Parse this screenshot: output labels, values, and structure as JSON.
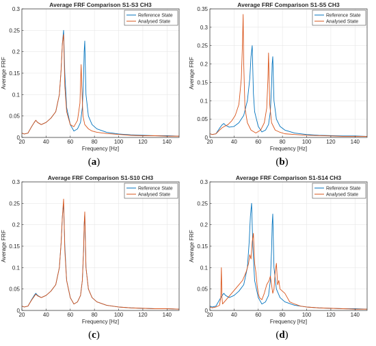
{
  "figure": {
    "panels": [
      {
        "caption_letter": "a",
        "title": "Average FRF Comparison S1-S3 CH3",
        "xlabel": "Frequency [Hz]",
        "ylabel": "Average FRF",
        "legend": [
          "Reference State",
          "Analysed State"
        ]
      },
      {
        "caption_letter": "b",
        "title": "Average FRF Comparison S1-S5 CH3",
        "xlabel": "Frequency [Hz]",
        "ylabel": "Average FRF",
        "legend": [
          "Reference State",
          "Analysed State"
        ]
      },
      {
        "caption_letter": "c",
        "title": "Average FRF Comparison S1-S10 CH3",
        "xlabel": "Frequency [Hz]",
        "ylabel": "Average FRF",
        "legend": [
          "Reference State",
          "Analysed State"
        ]
      },
      {
        "caption_letter": "d",
        "title": "Average FRF Comparison S1-S14 CH3",
        "xlabel": "Frequency [Hz]",
        "ylabel": "Average FRF",
        "legend": [
          "Reference State",
          "Analysed State"
        ]
      }
    ]
  },
  "colors": {
    "reference": "#0072BD",
    "analysed": "#D95319",
    "grid": "#e6e6e6",
    "axis": "#262626"
  },
  "chart_data": [
    {
      "type": "line",
      "title": "Average FRF Comparison S1-S3 CH3",
      "xlabel": "Frequency [Hz]",
      "ylabel": "Average FRF",
      "xlim": [
        20,
        150
      ],
      "ylim": [
        0,
        0.3
      ],
      "xticks": [
        20,
        40,
        60,
        80,
        100,
        120,
        140
      ],
      "yticks": [
        0,
        0.05,
        0.1,
        0.15,
        0.2,
        0.25,
        0.3
      ],
      "grid": true,
      "legend_position": "top-right",
      "series": [
        {
          "name": "Reference State",
          "x": [
            20,
            22,
            25,
            28,
            30,
            31.5,
            33,
            36,
            40,
            44,
            48,
            51,
            52.5,
            53.5,
            54.5,
            55.5,
            57,
            60,
            63,
            66,
            68.5,
            70,
            71,
            71.5,
            72,
            73,
            75,
            78,
            82,
            90,
            100,
            110,
            120,
            130,
            140,
            150
          ],
          "y": [
            0.01,
            0.008,
            0.01,
            0.025,
            0.034,
            0.04,
            0.035,
            0.03,
            0.035,
            0.045,
            0.06,
            0.1,
            0.16,
            0.22,
            0.25,
            0.15,
            0.07,
            0.03,
            0.015,
            0.02,
            0.035,
            0.07,
            0.14,
            0.2,
            0.225,
            0.1,
            0.05,
            0.03,
            0.02,
            0.012,
            0.008,
            0.006,
            0.005,
            0.004,
            0.004,
            0.003
          ]
        },
        {
          "name": "Analysed State",
          "x": [
            20,
            22,
            25,
            28,
            30,
            31.5,
            33,
            36,
            40,
            44,
            48,
            51,
            52.5,
            53.5,
            54.5,
            55.5,
            57,
            60,
            63,
            66,
            68,
            69,
            69.5,
            70.5,
            72,
            75,
            78,
            82,
            90,
            100,
            110,
            120,
            130,
            140,
            150
          ],
          "y": [
            0.01,
            0.008,
            0.01,
            0.025,
            0.034,
            0.04,
            0.035,
            0.03,
            0.035,
            0.045,
            0.06,
            0.1,
            0.16,
            0.22,
            0.24,
            0.12,
            0.06,
            0.03,
            0.025,
            0.04,
            0.08,
            0.17,
            0.12,
            0.05,
            0.03,
            0.02,
            0.015,
            0.012,
            0.009,
            0.007,
            0.005,
            0.004,
            0.004,
            0.003,
            0.003
          ]
        }
      ]
    },
    {
      "type": "line",
      "title": "Average FRF Comparison S1-S5 CH3",
      "xlabel": "Frequency [Hz]",
      "ylabel": "Average FRF",
      "xlim": [
        20,
        150
      ],
      "ylim": [
        0,
        0.35
      ],
      "xticks": [
        20,
        40,
        60,
        80,
        100,
        120,
        140
      ],
      "yticks": [
        0,
        0.05,
        0.1,
        0.15,
        0.2,
        0.25,
        0.3,
        0.35
      ],
      "grid": true,
      "legend_position": "top-right",
      "series": [
        {
          "name": "Reference State",
          "x": [
            20,
            22,
            25,
            28,
            30,
            31.5,
            33,
            36,
            40,
            44,
            48,
            51,
            53,
            54,
            55,
            56,
            57,
            60,
            63,
            66,
            68.5,
            70,
            71,
            71.5,
            72,
            73,
            75,
            78,
            82,
            90,
            100,
            110,
            120,
            130,
            140,
            150
          ],
          "y": [
            0.01,
            0.008,
            0.01,
            0.025,
            0.034,
            0.038,
            0.033,
            0.028,
            0.03,
            0.04,
            0.06,
            0.1,
            0.16,
            0.22,
            0.25,
            0.12,
            0.07,
            0.03,
            0.015,
            0.02,
            0.035,
            0.07,
            0.14,
            0.2,
            0.22,
            0.1,
            0.05,
            0.03,
            0.02,
            0.012,
            0.008,
            0.006,
            0.005,
            0.004,
            0.004,
            0.003
          ]
        },
        {
          "name": "Analysed State",
          "x": [
            20,
            22,
            25,
            28,
            30,
            32,
            35,
            38,
            41,
            44,
            46,
            47,
            47.5,
            48,
            49,
            51,
            54,
            58,
            62,
            65,
            67,
            68,
            68.5,
            69.5,
            71,
            74,
            78,
            82,
            90,
            100,
            110,
            120,
            130,
            140,
            150
          ],
          "y": [
            0.01,
            0.008,
            0.01,
            0.02,
            0.026,
            0.03,
            0.035,
            0.045,
            0.06,
            0.09,
            0.16,
            0.26,
            0.335,
            0.2,
            0.08,
            0.04,
            0.02,
            0.012,
            0.02,
            0.04,
            0.08,
            0.16,
            0.23,
            0.09,
            0.04,
            0.02,
            0.014,
            0.01,
            0.008,
            0.006,
            0.005,
            0.004,
            0.003,
            0.003,
            0.003
          ]
        }
      ]
    },
    {
      "type": "line",
      "title": "Average FRF Comparison S1-S10 CH3",
      "xlabel": "Frequency [Hz]",
      "ylabel": "Average FRF",
      "xlim": [
        20,
        150
      ],
      "ylim": [
        0,
        0.3
      ],
      "xticks": [
        20,
        40,
        60,
        80,
        100,
        120,
        140
      ],
      "yticks": [
        0,
        0.05,
        0.1,
        0.15,
        0.2,
        0.25,
        0.3
      ],
      "grid": true,
      "legend_position": "top-right",
      "series": [
        {
          "name": "Reference State",
          "x": [
            20,
            22,
            25,
            28,
            30,
            31.5,
            33,
            36,
            40,
            44,
            48,
            51,
            52.5,
            53.5,
            54.5,
            55.5,
            57,
            60,
            63,
            66,
            68.5,
            70,
            71,
            71.5,
            72,
            73,
            75,
            78,
            82,
            90,
            100,
            110,
            120,
            130,
            140,
            150
          ],
          "y": [
            0.01,
            0.008,
            0.01,
            0.025,
            0.034,
            0.04,
            0.035,
            0.03,
            0.035,
            0.045,
            0.06,
            0.1,
            0.16,
            0.22,
            0.25,
            0.15,
            0.07,
            0.03,
            0.015,
            0.02,
            0.035,
            0.07,
            0.14,
            0.2,
            0.225,
            0.1,
            0.05,
            0.03,
            0.02,
            0.012,
            0.008,
            0.006,
            0.005,
            0.004,
            0.004,
            0.003
          ]
        },
        {
          "name": "Analysed State",
          "x": [
            20,
            22,
            25,
            28,
            30,
            31.5,
            33,
            36,
            40,
            44,
            48,
            51,
            52.5,
            53.5,
            54.5,
            55.5,
            57,
            60,
            63,
            66,
            68.5,
            70,
            71,
            71.5,
            72,
            73,
            75,
            78,
            82,
            90,
            100,
            110,
            120,
            130,
            140,
            150
          ],
          "y": [
            0.01,
            0.008,
            0.01,
            0.024,
            0.032,
            0.038,
            0.034,
            0.03,
            0.035,
            0.045,
            0.06,
            0.1,
            0.16,
            0.22,
            0.26,
            0.14,
            0.07,
            0.03,
            0.015,
            0.02,
            0.035,
            0.07,
            0.14,
            0.2,
            0.23,
            0.1,
            0.05,
            0.03,
            0.02,
            0.012,
            0.008,
            0.006,
            0.005,
            0.004,
            0.004,
            0.003
          ]
        }
      ]
    },
    {
      "type": "line",
      "title": "Average FRF Comparison S1-S14 CH3",
      "xlabel": "Frequency [Hz]",
      "ylabel": "Average FRF",
      "xlim": [
        20,
        150
      ],
      "ylim": [
        0,
        0.3
      ],
      "xticks": [
        20,
        40,
        60,
        80,
        100,
        120,
        140
      ],
      "yticks": [
        0,
        0.05,
        0.1,
        0.15,
        0.2,
        0.25,
        0.3
      ],
      "grid": true,
      "legend_position": "top-right",
      "series": [
        {
          "name": "Reference State",
          "x": [
            20,
            22,
            25,
            28,
            30,
            31.5,
            33,
            36,
            40,
            44,
            48,
            51,
            52.5,
            53.5,
            54.5,
            55.5,
            57,
            60,
            63,
            66,
            68.5,
            70,
            71,
            71.5,
            72,
            73,
            75,
            78,
            82,
            90,
            100,
            110,
            120,
            130,
            140,
            150
          ],
          "y": [
            0.01,
            0.008,
            0.01,
            0.025,
            0.034,
            0.04,
            0.035,
            0.03,
            0.035,
            0.045,
            0.06,
            0.1,
            0.16,
            0.22,
            0.25,
            0.15,
            0.07,
            0.03,
            0.015,
            0.02,
            0.035,
            0.07,
            0.14,
            0.2,
            0.225,
            0.1,
            0.05,
            0.03,
            0.02,
            0.012,
            0.008,
            0.006,
            0.005,
            0.004,
            0.004,
            0.003
          ]
        },
        {
          "name": "Analysed State",
          "x": [
            20,
            22,
            25,
            28,
            29,
            29.5,
            30,
            30.5,
            32,
            35,
            38,
            41,
            44,
            47,
            50,
            52,
            53,
            54,
            55,
            56,
            57,
            58,
            59,
            60,
            61,
            63,
            65,
            67,
            69,
            70,
            71,
            72,
            73,
            74,
            75,
            76,
            77,
            78,
            80,
            82,
            84,
            86,
            90,
            95,
            100,
            110,
            120,
            130,
            140,
            150
          ],
          "y": [
            0.008,
            0.006,
            0.008,
            0.012,
            0.03,
            0.1,
            0.03,
            0.015,
            0.02,
            0.03,
            0.04,
            0.05,
            0.06,
            0.07,
            0.09,
            0.11,
            0.13,
            0.12,
            0.16,
            0.18,
            0.11,
            0.09,
            0.06,
            0.04,
            0.03,
            0.025,
            0.04,
            0.06,
            0.07,
            0.08,
            0.06,
            0.04,
            0.05,
            0.09,
            0.11,
            0.06,
            0.07,
            0.05,
            0.045,
            0.04,
            0.03,
            0.02,
            0.015,
            0.01,
            0.008,
            0.006,
            0.005,
            0.004,
            0.003,
            0.003
          ]
        }
      ]
    }
  ]
}
